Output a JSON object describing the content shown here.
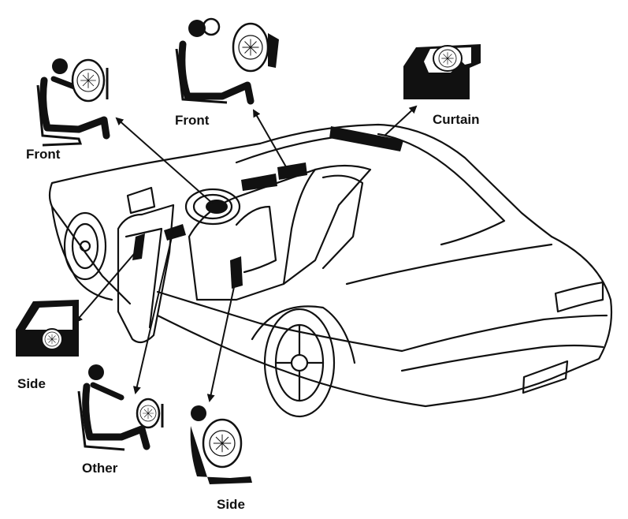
{
  "labels": {
    "front_driver": "Front",
    "front_passenger": "Front",
    "curtain": "Curtain",
    "side_door": "Side",
    "other_knee": "Other",
    "side_seat": "Side"
  },
  "icons": {
    "car": "car-outline-icon",
    "airbag": "airbag-deploy-icon",
    "seat": "seated-occupant-icon"
  },
  "colors": {
    "ink": "#111111",
    "airbag_fill": "#111111",
    "background": "#ffffff"
  }
}
